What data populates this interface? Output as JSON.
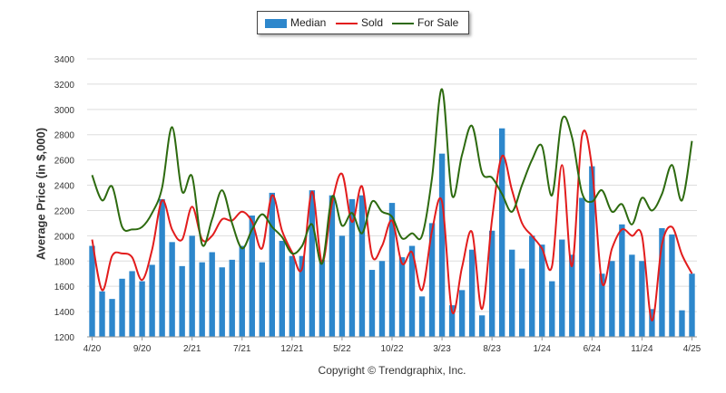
{
  "chart_data": {
    "type": "bar+line",
    "ylabel": "Average Price (in $,000)",
    "xlabel": "",
    "ylim": [
      1200,
      3400
    ],
    "yticks": [
      1200,
      1400,
      1600,
      1800,
      2000,
      2200,
      2400,
      2600,
      2800,
      3000,
      3200,
      3400
    ],
    "xtick_labels": [
      "4/20",
      "9/20",
      "2/21",
      "7/21",
      "12/21",
      "5/22",
      "10/22",
      "3/23",
      "8/23",
      "1/24",
      "6/24",
      "11/24",
      "4/25"
    ],
    "xtick_every": 5,
    "categories": [
      "4/20",
      "5/20",
      "6/20",
      "7/20",
      "8/20",
      "9/20",
      "10/20",
      "11/20",
      "12/20",
      "1/21",
      "2/21",
      "3/21",
      "4/21",
      "5/21",
      "6/21",
      "7/21",
      "8/21",
      "9/21",
      "10/21",
      "11/21",
      "12/21",
      "1/22",
      "2/22",
      "3/22",
      "4/22",
      "5/22",
      "6/22",
      "7/22",
      "8/22",
      "9/22",
      "10/22",
      "11/22",
      "12/22",
      "1/23",
      "2/23",
      "3/23",
      "4/23",
      "5/23",
      "6/23",
      "7/23",
      "8/23",
      "9/23",
      "10/23",
      "11/23",
      "12/23",
      "1/24",
      "2/24",
      "3/24",
      "4/24",
      "5/24",
      "6/24",
      "7/24",
      "8/24",
      "9/24",
      "10/24",
      "11/24",
      "12/24",
      "1/25",
      "2/25",
      "3/25",
      "4/25"
    ],
    "series": [
      {
        "name": "Median",
        "kind": "bar",
        "color": "#2d87cc",
        "values": [
          1920,
          1560,
          1500,
          1660,
          1720,
          1640,
          1770,
          2290,
          1950,
          1760,
          2000,
          1790,
          1870,
          1750,
          1810,
          1920,
          2160,
          1790,
          2340,
          1960,
          1840,
          1840,
          2360,
          1810,
          2320,
          2000,
          2290,
          2320,
          1730,
          1800,
          2260,
          1830,
          1920,
          1520,
          2100,
          2650,
          1450,
          1570,
          1890,
          1370,
          2040,
          2850,
          1890,
          1740,
          2000,
          1930,
          1640,
          1970,
          1850,
          2300,
          2550,
          1700,
          1800,
          2090,
          1850,
          1800,
          1420,
          2060,
          2010,
          1410,
          1700
        ]
      },
      {
        "name": "Sold",
        "kind": "line",
        "color": "#e21c1c",
        "values": [
          1970,
          1570,
          1840,
          1860,
          1830,
          1650,
          1890,
          2280,
          2050,
          1970,
          2230,
          1970,
          2000,
          2130,
          2120,
          2190,
          2110,
          1900,
          2320,
          2040,
          1870,
          1740,
          2350,
          1790,
          2260,
          2490,
          2110,
          2390,
          1840,
          1920,
          2120,
          1780,
          1870,
          1570,
          2040,
          2270,
          1400,
          1750,
          2030,
          1420,
          2130,
          2630,
          2360,
          2100,
          2000,
          1900,
          1760,
          2560,
          1760,
          2790,
          2540,
          1630,
          1900,
          2050,
          2000,
          2000,
          1330,
          1930,
          2070,
          1850,
          1700
        ]
      },
      {
        "name": "For Sale",
        "kind": "line",
        "color": "#2d6a0f",
        "values": [
          2480,
          2280,
          2390,
          2070,
          2050,
          2070,
          2180,
          2380,
          2860,
          2350,
          2470,
          1930,
          2130,
          2360,
          2100,
          1900,
          2050,
          2170,
          2070,
          1990,
          1860,
          1920,
          2090,
          1780,
          2310,
          2080,
          2180,
          2020,
          2270,
          2190,
          2150,
          1980,
          2020,
          2000,
          2460,
          3160,
          2320,
          2640,
          2870,
          2500,
          2460,
          2330,
          2190,
          2400,
          2600,
          2710,
          2320,
          2920,
          2780,
          2340,
          2270,
          2360,
          2190,
          2250,
          2090,
          2300,
          2200,
          2330,
          2560,
          2280,
          2750
        ]
      }
    ],
    "legend": {
      "position": "top-center"
    },
    "grid": {
      "horizontal": true,
      "vertical": false
    }
  },
  "legend_labels": {
    "median": "Median",
    "sold": "Sold",
    "for_sale": "For Sale"
  },
  "copyright": "Copyright © Trendgraphix, Inc."
}
